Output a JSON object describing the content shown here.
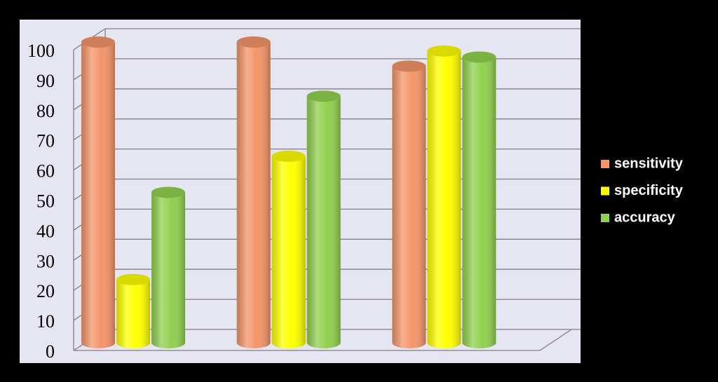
{
  "chart_data": {
    "type": "bar",
    "categories": [
      null,
      null,
      null
    ],
    "series": [
      {
        "name": "sensitivity",
        "color": "#f4956a",
        "values": [
          100,
          100,
          92
        ]
      },
      {
        "name": "specificity",
        "color": "#ffff00",
        "values": [
          21,
          62,
          97
        ]
      },
      {
        "name": "accuracy",
        "color": "#92d050",
        "values": [
          50,
          82,
          95
        ]
      }
    ],
    "ylim": [
      0,
      100
    ],
    "yticks": [
      0,
      10,
      20,
      30,
      40,
      50,
      60,
      70,
      80,
      90,
      100
    ],
    "grid": true,
    "legend": "right"
  }
}
